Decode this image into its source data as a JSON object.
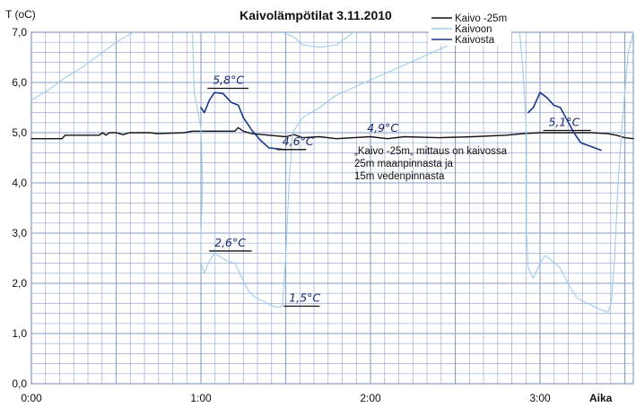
{
  "chart_data": {
    "type": "line",
    "title": "Kaivolämpötilat 3.11.2010",
    "ylabel": "T (oC)",
    "xlabel": "Aika",
    "ylim": [
      0,
      7
    ],
    "xlim": [
      0,
      3.55
    ],
    "grid": true,
    "y_ticks": [
      "0,0",
      "1,0",
      "2,0",
      "3,0",
      "4,0",
      "5,0",
      "6,0",
      "7,0"
    ],
    "x_ticks": [
      {
        "value": 0,
        "label": "0:00"
      },
      {
        "value": 1,
        "label": "1:00"
      },
      {
        "value": 2,
        "label": "2:00"
      },
      {
        "value": 3,
        "label": "3:00"
      }
    ],
    "legend_position": "top-right",
    "colors": {
      "Kaivo -25m": "#111111",
      "Kaivoon": "#9fcdea",
      "Kaivosta": "#1a3a8c",
      "grid": "#8a9ec8"
    },
    "series": [
      {
        "name": "Kaivo -25m",
        "segments": [
          [
            [
              0.0,
              4.88
            ],
            [
              0.18,
              4.88
            ],
            [
              0.2,
              4.95
            ],
            [
              0.4,
              4.95
            ],
            [
              0.42,
              5.0
            ],
            [
              0.44,
              4.95
            ],
            [
              0.46,
              5.0
            ],
            [
              0.5,
              5.0
            ],
            [
              0.54,
              4.96
            ],
            [
              0.58,
              5.0
            ],
            [
              0.7,
              5.0
            ],
            [
              0.74,
              4.98
            ],
            [
              0.9,
              5.0
            ],
            [
              0.95,
              5.03
            ],
            [
              1.2,
              5.03
            ],
            [
              1.22,
              5.1
            ],
            [
              1.25,
              5.03
            ],
            [
              1.3,
              4.98
            ],
            [
              1.4,
              4.95
            ],
            [
              1.5,
              4.92
            ],
            [
              1.55,
              4.96
            ],
            [
              1.6,
              4.9
            ],
            [
              1.7,
              4.92
            ],
            [
              1.8,
              4.88
            ],
            [
              1.9,
              4.9
            ],
            [
              2.0,
              4.92
            ],
            [
              2.1,
              4.88
            ],
            [
              2.2,
              4.92
            ],
            [
              2.4,
              4.9
            ],
            [
              2.6,
              4.92
            ],
            [
              2.8,
              4.95
            ],
            [
              2.9,
              4.98
            ],
            [
              3.0,
              5.0
            ],
            [
              3.1,
              5.0
            ],
            [
              3.2,
              5.0
            ],
            [
              3.3,
              5.0
            ],
            [
              3.4,
              4.98
            ],
            [
              3.45,
              4.95
            ],
            [
              3.5,
              4.9
            ],
            [
              3.55,
              4.88
            ]
          ]
        ]
      },
      {
        "name": "Kaivoon",
        "segments": [
          [
            [
              0.0,
              5.65
            ],
            [
              0.1,
              5.85
            ],
            [
              0.2,
              6.1
            ],
            [
              0.3,
              6.3
            ],
            [
              0.4,
              6.55
            ],
            [
              0.5,
              6.8
            ],
            [
              0.6,
              7.0
            ]
          ],
          [
            [
              0.95,
              7.0
            ],
            [
              0.96,
              5.8
            ],
            [
              1.0,
              5.1
            ],
            [
              1.01,
              4.0
            ],
            [
              1.0,
              3.0
            ],
            [
              1.0,
              2.4
            ],
            [
              1.02,
              2.2
            ],
            [
              1.05,
              2.45
            ],
            [
              1.08,
              2.6
            ],
            [
              1.12,
              2.52
            ],
            [
              1.15,
              2.45
            ],
            [
              1.2,
              2.4
            ],
            [
              1.25,
              2.05
            ],
            [
              1.28,
              1.85
            ],
            [
              1.32,
              1.72
            ],
            [
              1.38,
              1.62
            ],
            [
              1.42,
              1.55
            ],
            [
              1.45,
              1.52
            ],
            [
              1.48,
              1.55
            ],
            [
              1.5,
              2.5
            ],
            [
              1.52,
              4.0
            ],
            [
              1.54,
              5.0
            ],
            [
              1.6,
              5.3
            ],
            [
              1.7,
              5.5
            ],
            [
              1.8,
              5.75
            ],
            [
              2.0,
              6.05
            ],
            [
              2.2,
              6.35
            ],
            [
              2.4,
              6.65
            ],
            [
              2.5,
              6.8
            ],
            [
              2.6,
              7.0
            ]
          ],
          [
            [
              1.48,
              7.0
            ],
            [
              1.55,
              6.9
            ],
            [
              1.6,
              6.75
            ],
            [
              1.7,
              6.7
            ],
            [
              1.8,
              6.75
            ],
            [
              1.9,
              7.0
            ]
          ],
          [
            [
              2.88,
              7.0
            ],
            [
              2.9,
              6.2
            ],
            [
              2.92,
              5.0
            ],
            [
              2.92,
              4.0
            ],
            [
              2.92,
              3.0
            ],
            [
              2.93,
              2.3
            ],
            [
              2.96,
              2.1
            ],
            [
              3.0,
              2.4
            ],
            [
              3.03,
              2.55
            ],
            [
              3.07,
              2.45
            ],
            [
              3.12,
              2.3
            ],
            [
              3.18,
              1.9
            ],
            [
              3.22,
              1.7
            ],
            [
              3.28,
              1.6
            ],
            [
              3.34,
              1.5
            ],
            [
              3.38,
              1.45
            ],
            [
              3.4,
              1.42
            ],
            [
              3.42,
              1.6
            ],
            [
              3.44,
              2.5
            ],
            [
              3.46,
              4.0
            ],
            [
              3.48,
              5.0
            ],
            [
              3.5,
              5.8
            ],
            [
              3.52,
              6.6
            ],
            [
              3.55,
              7.0
            ]
          ]
        ]
      },
      {
        "name": "Kaivosta",
        "segments": [
          [
            [
              1.0,
              5.5
            ],
            [
              1.02,
              5.4
            ],
            [
              1.05,
              5.65
            ],
            [
              1.08,
              5.8
            ],
            [
              1.13,
              5.78
            ],
            [
              1.18,
              5.6
            ],
            [
              1.22,
              5.55
            ],
            [
              1.25,
              5.3
            ],
            [
              1.3,
              5.05
            ],
            [
              1.35,
              4.85
            ],
            [
              1.4,
              4.7
            ],
            [
              1.45,
              4.68
            ],
            [
              1.5,
              4.66
            ]
          ],
          [
            [
              2.93,
              5.4
            ],
            [
              2.96,
              5.5
            ],
            [
              3.0,
              5.8
            ],
            [
              3.04,
              5.7
            ],
            [
              3.08,
              5.55
            ],
            [
              3.12,
              5.5
            ],
            [
              3.16,
              5.25
            ],
            [
              3.2,
              5.0
            ],
            [
              3.24,
              4.8
            ],
            [
              3.28,
              4.75
            ],
            [
              3.32,
              4.7
            ],
            [
              3.36,
              4.65
            ]
          ]
        ]
      }
    ],
    "annotations": [
      {
        "text": "5,8°C",
        "x": 1.07,
        "y": 5.92,
        "underline_to": 1.28
      },
      {
        "text": "2,6°C",
        "x": 1.08,
        "y": 2.68,
        "underline_to": 1.3
      },
      {
        "text": "4,6°C",
        "x": 1.48,
        "y": 4.7,
        "underline_to": 1.62
      },
      {
        "text": "1,5°C",
        "x": 1.52,
        "y": 1.58,
        "underline_to": 1.7
      },
      {
        "text": "4,9°C",
        "x": 1.98,
        "y": 4.96
      },
      {
        "text": "5,1°C",
        "x": 3.05,
        "y": 5.08,
        "underline_to": 3.3
      }
    ],
    "note": [
      "„Kaivo -25m„ mittaus on kaivossa",
      "25m maanpinnasta ja",
      "15m vedenpinnasta"
    ]
  }
}
